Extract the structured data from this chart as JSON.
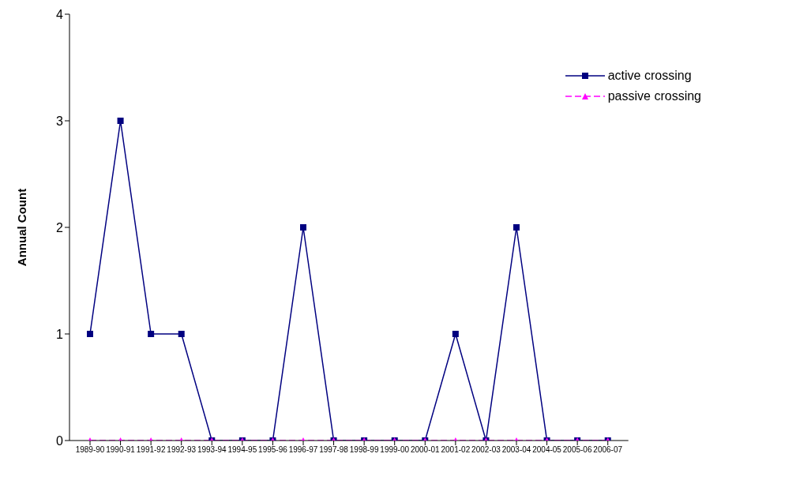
{
  "chart_data": {
    "type": "line",
    "ylabel": "Annual Count",
    "categories": [
      "1989-90",
      "1990-91",
      "1991-92",
      "1992-93",
      "1993-94",
      "1994-95",
      "1995-96",
      "1996-97",
      "1997-98",
      "1998-99",
      "1999-00",
      "2000-01",
      "2001-02",
      "2002-03",
      "2003-04",
      "2004-05",
      "2005-06",
      "2006-07"
    ],
    "series": [
      {
        "name": "active crossing",
        "color": "#000080",
        "marker": "square",
        "line_style": "solid",
        "values": [
          1,
          3,
          1,
          1,
          0,
          0,
          0,
          2,
          0,
          0,
          0,
          0,
          1,
          0,
          2,
          0,
          0,
          0
        ]
      },
      {
        "name": "passive crossing",
        "color": "#ff00ff",
        "marker": "triangle",
        "line_style": "dashed",
        "values": [
          0,
          0,
          0,
          0,
          0,
          0,
          0,
          0,
          0,
          0,
          0,
          0,
          0,
          0,
          0,
          0,
          0,
          0
        ]
      }
    ],
    "ylim": [
      0,
      4
    ],
    "yticks": [
      0,
      1,
      2,
      3,
      4
    ],
    "grid": false,
    "legend": "top right"
  }
}
